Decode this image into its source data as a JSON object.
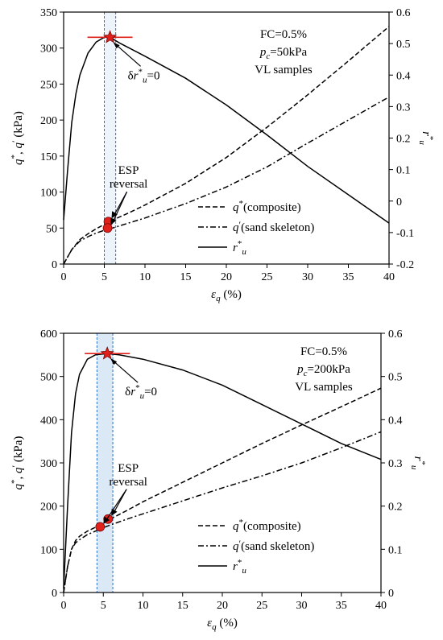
{
  "chart_data": [
    {
      "type": "line",
      "x": {
        "label_main": "ε",
        "label_sub": "q",
        "label_unit": " (%)",
        "lim": [
          0,
          40
        ],
        "ticks": [
          0,
          5,
          10,
          15,
          20,
          25,
          30,
          35,
          40
        ]
      },
      "y_left": {
        "label": "q*, q′ (kPa)",
        "lim": [
          0,
          350
        ],
        "ticks": [
          0,
          50,
          100,
          150,
          200,
          250,
          300,
          350
        ]
      },
      "y_right": {
        "label": "r*u",
        "lim": [
          -0.2,
          0.6
        ],
        "ticks": [
          -0.2,
          -0.1,
          0,
          0.1,
          0.2,
          0.3,
          0.4,
          0.5,
          0.6
        ],
        "tick_labels": [
          "-0.2",
          "-0.1",
          "0",
          "0.1",
          "0.2",
          "0.3",
          "0.4",
          "0.5",
          "0.6"
        ]
      },
      "annotations": {
        "line1": "FC=0.5%",
        "line2": "pc=50kPa",
        "line3": "VL samples"
      },
      "delta_label": "δr*u=0",
      "esp_label": [
        "ESP",
        "reversal"
      ],
      "band": [
        5.0,
        6.4
      ],
      "star": {
        "x": 5.7,
        "y": 315
      },
      "esp_points": [
        {
          "x": 5.5,
          "y": 59
        },
        {
          "x": 5.4,
          "y": 50
        }
      ],
      "series": [
        {
          "name": "q*(composite)",
          "axis": "left",
          "style": "dashed",
          "points": [
            [
              0,
              0
            ],
            [
              1,
              20
            ],
            [
              2,
              34
            ],
            [
              3,
              42
            ],
            [
              4,
              49
            ],
            [
              5,
              55
            ],
            [
              6,
              61
            ],
            [
              8,
              71
            ],
            [
              10,
              82
            ],
            [
              15,
              112
            ],
            [
              20,
              148
            ],
            [
              25,
              190
            ],
            [
              30,
              235
            ],
            [
              35,
              282
            ],
            [
              40,
              330
            ]
          ]
        },
        {
          "name": "q′(sand skeleton)",
          "axis": "left",
          "style": "dashdot",
          "points": [
            [
              0,
              0
            ],
            [
              1,
              20
            ],
            [
              2,
              32
            ],
            [
              3,
              38
            ],
            [
              4,
              43
            ],
            [
              5,
              47
            ],
            [
              6,
              50
            ],
            [
              8,
              57
            ],
            [
              10,
              64
            ],
            [
              15,
              84
            ],
            [
              20,
              107
            ],
            [
              25,
              135
            ],
            [
              30,
              168
            ],
            [
              35,
              200
            ],
            [
              40,
              232
            ]
          ]
        },
        {
          "name": "r*u",
          "axis": "right",
          "style": "solid",
          "points": [
            [
              0,
              -0.06
            ],
            [
              0.5,
              0.1
            ],
            [
              1,
              0.25
            ],
            [
              1.5,
              0.34
            ],
            [
              2,
              0.4
            ],
            [
              3,
              0.47
            ],
            [
              4,
              0.505
            ],
            [
              5,
              0.52
            ],
            [
              5.7,
              0.52
            ],
            [
              7,
              0.5
            ],
            [
              10,
              0.46
            ],
            [
              15,
              0.39
            ],
            [
              20,
              0.305
            ],
            [
              25,
              0.21
            ],
            [
              30,
              0.11
            ],
            [
              35,
              0.02
            ],
            [
              40,
              -0.07
            ]
          ]
        }
      ]
    },
    {
      "type": "line",
      "x": {
        "label_main": "ε",
        "label_sub": "q",
        "label_unit": " (%)",
        "lim": [
          0,
          40
        ],
        "ticks": [
          0,
          5,
          10,
          15,
          20,
          25,
          30,
          35,
          40
        ]
      },
      "y_left": {
        "label": "q*, q′ (kPa)",
        "lim": [
          0,
          600
        ],
        "ticks": [
          0,
          100,
          200,
          300,
          400,
          500,
          600
        ]
      },
      "y_right": {
        "label": "r*u",
        "lim": [
          0,
          0.6
        ],
        "ticks": [
          0,
          0.1,
          0.2,
          0.3,
          0.4,
          0.5,
          0.6
        ],
        "tick_labels": [
          "0",
          "0.1",
          "0.2",
          "0.3",
          "0.4",
          "0.5",
          "0.6"
        ]
      },
      "annotations": {
        "line1": "FC=0.5%",
        "line2": "pc=200kPa",
        "line3": "VL samples"
      },
      "delta_label": "δr*u=0",
      "esp_label": [
        "ESP",
        "reversal"
      ],
      "band": [
        4.2,
        6.2
      ],
      "star": {
        "x": 5.5,
        "y": 553
      },
      "esp_points": [
        {
          "x": 5.6,
          "y": 170
        },
        {
          "x": 4.6,
          "y": 152
        }
      ],
      "series": [
        {
          "name": "q*(composite)",
          "axis": "left",
          "style": "dashed",
          "points": [
            [
              0,
              0
            ],
            [
              0.5,
              60
            ],
            [
              1,
              100
            ],
            [
              1.5,
              120
            ],
            [
              2,
              130
            ],
            [
              3,
              142
            ],
            [
              4,
              151
            ],
            [
              5,
              160
            ],
            [
              6,
              171
            ],
            [
              8,
              190
            ],
            [
              10,
              210
            ],
            [
              15,
              255
            ],
            [
              20,
              300
            ],
            [
              25,
              345
            ],
            [
              30,
              388
            ],
            [
              35,
              430
            ],
            [
              40,
              473
            ]
          ]
        },
        {
          "name": "q′(sand skeleton)",
          "axis": "left",
          "style": "dashdot",
          "points": [
            [
              0,
              0
            ],
            [
              0.5,
              60
            ],
            [
              1,
              100
            ],
            [
              1.5,
              115
            ],
            [
              2,
              122
            ],
            [
              3,
              134
            ],
            [
              4,
              142
            ],
            [
              5,
              150
            ],
            [
              6,
              157
            ],
            [
              8,
              170
            ],
            [
              10,
              182
            ],
            [
              15,
              212
            ],
            [
              20,
              242
            ],
            [
              25,
              270
            ],
            [
              30,
              300
            ],
            [
              35,
              335
            ],
            [
              40,
              372
            ]
          ]
        },
        {
          "name": "r*u",
          "axis": "right",
          "style": "solid",
          "points": [
            [
              0,
              0.01
            ],
            [
              0.5,
              0.2
            ],
            [
              1,
              0.37
            ],
            [
              1.5,
              0.46
            ],
            [
              2,
              0.505
            ],
            [
              3,
              0.54
            ],
            [
              4,
              0.55
            ],
            [
              5.5,
              0.553
            ],
            [
              7,
              0.55
            ],
            [
              10,
              0.54
            ],
            [
              15,
              0.515
            ],
            [
              20,
              0.48
            ],
            [
              25,
              0.435
            ],
            [
              30,
              0.39
            ],
            [
              35,
              0.345
            ],
            [
              40,
              0.308
            ]
          ]
        }
      ]
    }
  ]
}
